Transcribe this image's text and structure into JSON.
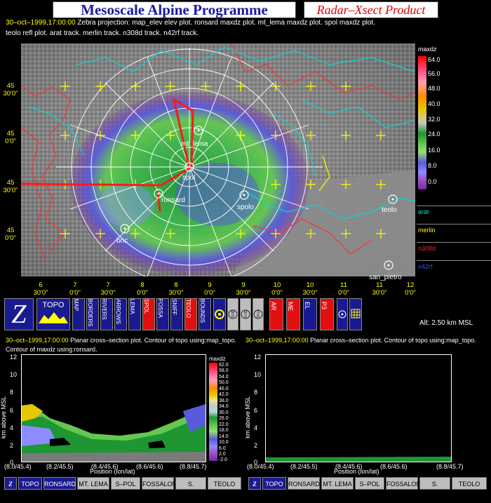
{
  "header": {
    "title": "Mesoscale Alpine Programme",
    "product": "Radar–Xsect Product",
    "time": "30–oct–1999,17:00:00",
    "desc1": "Zebra projection: map_elev elev plot.  ronsard maxdz plot.  mt_lema maxdz plot.  spol maxdz plot.",
    "desc2": "teolo refl plot.  arat track.    merlin track.    n308d track.    n42rf track."
  },
  "map": {
    "stations": [
      "mt_lema",
      "spol",
      "ronsard",
      "spolo",
      "bric",
      "teolo",
      "san_pietro"
    ],
    "lat_labels": [
      [
        "45",
        "30'0\""
      ],
      [
        "45",
        "0'0\""
      ],
      [
        "45",
        "30'0\""
      ],
      [
        "45",
        "0'0\""
      ]
    ],
    "lon_labels": [
      [
        "6",
        "30'0\""
      ],
      [
        "7",
        "0'0\""
      ],
      [
        "7",
        "30'0\""
      ],
      [
        "8",
        "0'0\""
      ],
      [
        "8",
        "30'0\""
      ],
      [
        "9",
        "0'0\""
      ],
      [
        "9",
        "30'0\""
      ],
      [
        "10",
        "0'0\""
      ],
      [
        "10",
        "30'0\""
      ],
      [
        "11",
        "0'0\""
      ],
      [
        "11",
        "30'0\""
      ],
      [
        "12",
        "0'0\""
      ]
    ],
    "colorbar": {
      "title": "maxdz",
      "labels": [
        "64.0",
        "56.0",
        "48.0",
        "40.0",
        "32.0",
        "24.0",
        "16.0",
        "8.0",
        "0.0"
      ],
      "colors": [
        "#ff0000",
        "#ff5a8c",
        "#ffa0b4",
        "#ff8c00",
        "#e6c800",
        "#c8c8c8",
        "#1e9632",
        "#64c850",
        "#96dc78",
        "#5a5adc",
        "#8c8cff",
        "#a050c8",
        "#7828a0"
      ]
    },
    "tracks": [
      {
        "name": "arat",
        "color": "#00e5e5"
      },
      {
        "name": "merlin",
        "color": "#ffff00"
      },
      {
        "name": "n308d",
        "color": "#ff2020"
      },
      {
        "name": "n42rf",
        "color": "#3050ff"
      }
    ]
  },
  "toolbar": {
    "topo": "TOPO",
    "vertical_items": [
      "MAP",
      "BORDERS",
      "RIVERS",
      "ARROWS",
      "LEMA",
      "SPOL",
      "FOSSA",
      "SNIFF",
      "TEOLO",
      "BOUNDS"
    ],
    "circles": [
      "M\nR",
      "M\nS",
      "S\nR"
    ],
    "red_items": [
      "AR",
      "ME",
      "EL",
      "P3"
    ],
    "altitude": "Alt: 2.50 km MSL"
  },
  "left_panel": {
    "time": "30–oct–1999,17:00:00",
    "cap1": "Planar cross–section plot.  Contour of topo using:map_topo.",
    "cap2": "Contour of maxdz using:ronsard.",
    "ylabel": "km above MSL",
    "yticks": [
      "12",
      "10",
      "8",
      "6",
      "4",
      "2",
      "0"
    ],
    "xlabel": "Position (lon/lat)",
    "xticks": [
      "(8.0/45.4)",
      "(8.2/45.5)",
      "(8.4/45.6)",
      "(8.6/45.6)",
      "(8.8/45.7)"
    ],
    "cb_title": "maxdz",
    "cb_labels": [
      "62.0",
      "58.0",
      "54.0",
      "50.0",
      "46.0",
      "42.0",
      "38.0",
      "34.0",
      "30.0",
      "26.0",
      "22.0",
      "18.0",
      "14.0",
      "10.0",
      "6.0",
      "2.0",
      "-2.0"
    ]
  },
  "right_panel": {
    "time": "30–oct–1999,17:00:00",
    "cap1": "Planar cross–section plot.  Contour of topo using:map_topo.",
    "ylabel": "km above MSL",
    "yticks": [
      "12",
      "10",
      "8",
      "6",
      "4",
      "2",
      "0"
    ],
    "xlabel": "Position (lon/lat)",
    "xticks": [
      "(8.0/45.4)",
      "(8.2/45.5)",
      "(8.4/45.6)",
      "(8.6/45.6)",
      "(8.8/45.7)"
    ]
  },
  "bottom_buttons": [
    "TOPO",
    "RONSARD",
    "MT. LEMA",
    "S–POL",
    "FOSSALON",
    "S. PIETRO",
    "TEOLO"
  ]
}
